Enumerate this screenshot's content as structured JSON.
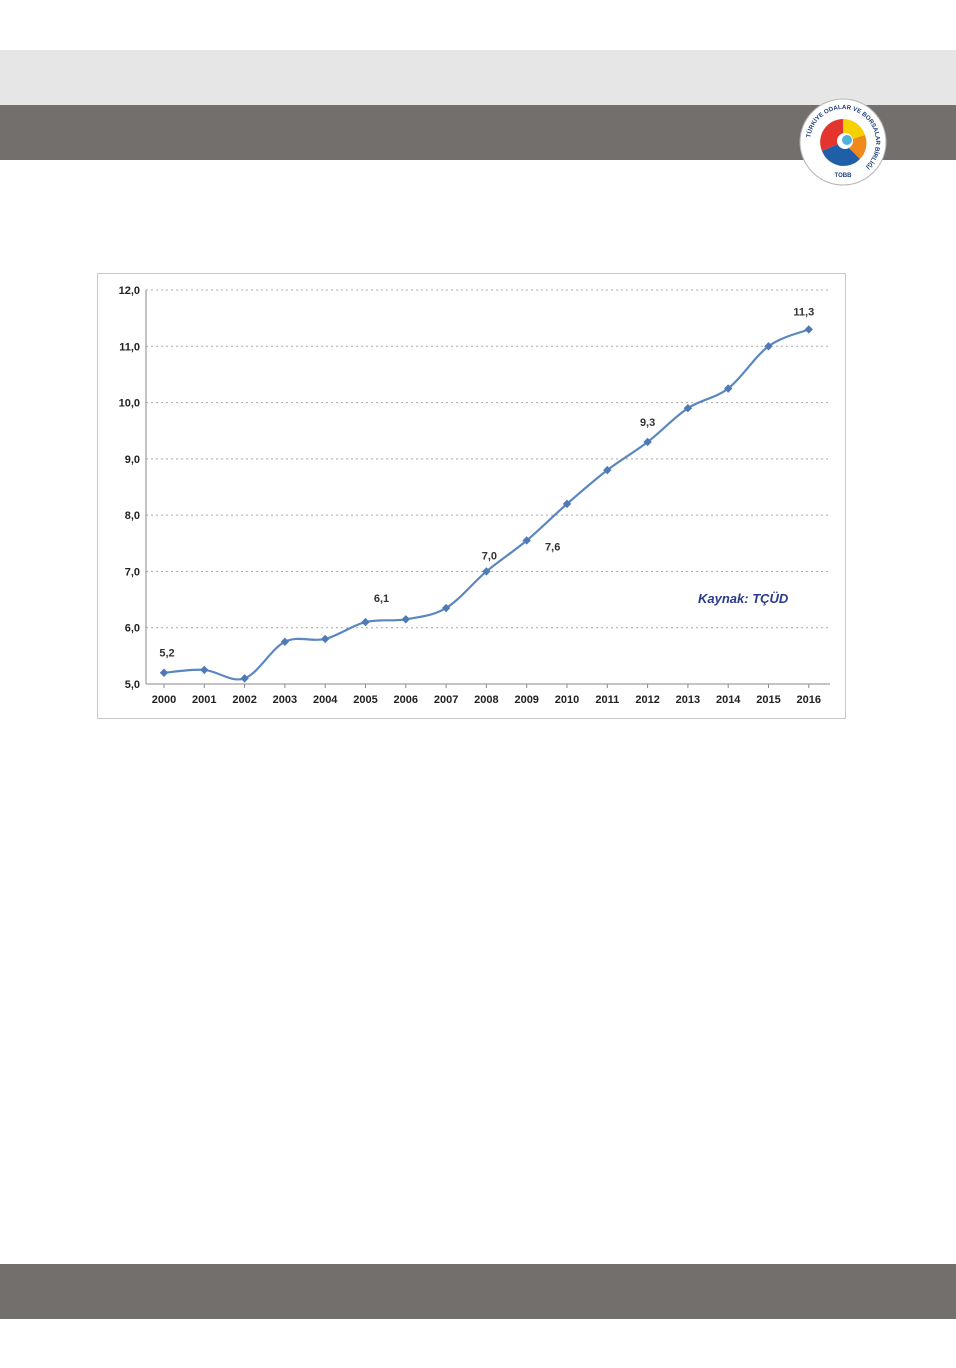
{
  "logo": {
    "ring_text": "TÜRKİYE ODALAR VE BORSALAR BİRLİĞİ",
    "abbr": "TOBB"
  },
  "chart_data": {
    "type": "line",
    "title": "",
    "xlabel": "",
    "ylabel": "",
    "categories": [
      "2000",
      "2001",
      "2002",
      "2003",
      "2004",
      "2005",
      "2006",
      "2007",
      "2008",
      "2009",
      "2010",
      "2011",
      "2012",
      "2013",
      "2014",
      "2015",
      "2016"
    ],
    "series": [
      {
        "values": [
          5.2,
          5.25,
          5.1,
          5.75,
          5.8,
          6.1,
          6.15,
          6.35,
          7.0,
          7.55,
          8.2,
          8.8,
          9.3,
          9.9,
          10.25,
          11.0,
          11.3
        ]
      }
    ],
    "data_labels": [
      {
        "index": 0,
        "text": "5,2"
      },
      {
        "index": 5,
        "text": "6,1"
      },
      {
        "index": 8,
        "text": "7,0"
      },
      {
        "index": 9,
        "text": "7,6"
      },
      {
        "index": 12,
        "text": "9,3"
      },
      {
        "index": 16,
        "text": "11,3"
      }
    ],
    "ylim": [
      5.0,
      12.0
    ],
    "y_ticks": [
      "5,0",
      "6,0",
      "7,0",
      "8,0",
      "9,0",
      "10,0",
      "11,0",
      "12,0"
    ],
    "grid": "horizontal-dotted",
    "annotation": "Kaynak: TÇÜD",
    "colors": {
      "line": "#5b87c0",
      "marker": "#4f7ab5",
      "grid": "#a8a8a8",
      "annotation": "#2a3a8c"
    }
  }
}
